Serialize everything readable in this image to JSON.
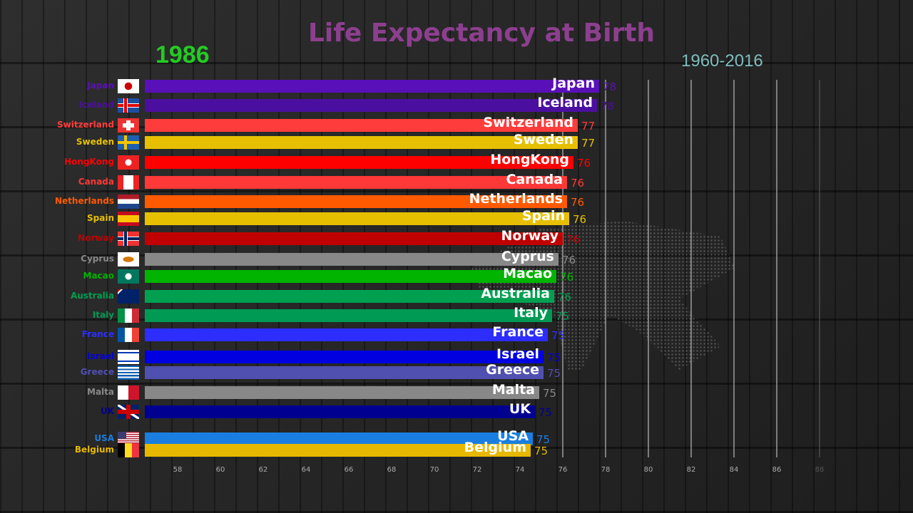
{
  "chart_data": {
    "type": "bar",
    "title": "Life Expectancy at Birth",
    "year": "1986",
    "period": "1960-2016",
    "xlabel": "",
    "ylabel": "",
    "xlim": [
      56.5,
      88
    ],
    "x_ticks": [
      58,
      60,
      62,
      64,
      66,
      68,
      70,
      72,
      74,
      76,
      78,
      80,
      82,
      84,
      86,
      88
    ],
    "grid": true,
    "bars": [
      {
        "name": "Japan",
        "value": 77.7,
        "label": "78",
        "color": "#5a10b8"
      },
      {
        "name": "Iceland",
        "value": 77.6,
        "label": "78",
        "color": "#4b0fa0"
      },
      {
        "name": "Switzerland",
        "value": 76.7,
        "label": "77",
        "color": "#ff3c3c"
      },
      {
        "name": "Sweden",
        "value": 76.7,
        "label": "77",
        "color": "#e6c000"
      },
      {
        "name": "HongKong",
        "value": 76.5,
        "label": "76",
        "color": "#ff0000"
      },
      {
        "name": "Canada",
        "value": 76.2,
        "label": "76",
        "color": "#ff3838"
      },
      {
        "name": "Netherlands",
        "value": 76.2,
        "label": "76",
        "color": "#ff5a00"
      },
      {
        "name": "Spain",
        "value": 76.3,
        "label": "76",
        "color": "#e6c000"
      },
      {
        "name": "Norway",
        "value": 76.0,
        "label": "76",
        "color": "#c00000"
      },
      {
        "name": "Cyprus",
        "value": 75.8,
        "label": "76",
        "color": "#888888"
      },
      {
        "name": "Macao",
        "value": 75.7,
        "label": "76",
        "color": "#00b400"
      },
      {
        "name": "Australia",
        "value": 75.6,
        "label": "76",
        "color": "#00a050"
      },
      {
        "name": "Italy",
        "value": 75.5,
        "label": "75",
        "color": "#009a55"
      },
      {
        "name": "France",
        "value": 75.3,
        "label": "75",
        "color": "#2d2dff"
      },
      {
        "name": "Israel",
        "value": 75.1,
        "label": "75",
        "color": "#0000e0"
      },
      {
        "name": "Greece",
        "value": 75.1,
        "label": "75",
        "color": "#5050b0"
      },
      {
        "name": "Malta",
        "value": 74.9,
        "label": "75",
        "color": "#888888"
      },
      {
        "name": "UK",
        "value": 74.7,
        "label": "75",
        "color": "#000090"
      },
      {
        "name": "USA",
        "value": 74.6,
        "label": "75",
        "color": "#1a7ee0"
      },
      {
        "name": "Belgium",
        "value": 74.5,
        "label": "75",
        "color": "#e6b800"
      }
    ]
  }
}
